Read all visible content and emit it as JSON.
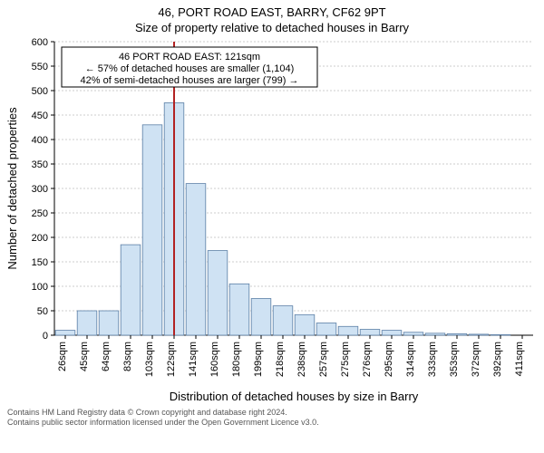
{
  "header": {
    "title": "46, PORT ROAD EAST, BARRY, CF62 9PT",
    "subtitle": "Size of property relative to detached houses in Barry"
  },
  "chart": {
    "type": "histogram",
    "xlabel": "Distribution of detached houses by size in Barry",
    "ylabel": "Number of detached properties",
    "background_color": "#ffffff",
    "grid_color": "#999999",
    "bar_fill": "#cfe2f3",
    "bar_stroke": "#5b7fa6",
    "ref_line_color": "#b22222",
    "ylim": [
      0,
      600
    ],
    "ytick_step": 50,
    "x_tick_labels": [
      "26sqm",
      "45sqm",
      "64sqm",
      "83sqm",
      "103sqm",
      "122sqm",
      "141sqm",
      "160sqm",
      "180sqm",
      "199sqm",
      "218sqm",
      "238sqm",
      "257sqm",
      "275sqm",
      "276sqm",
      "295sqm",
      "314sqm",
      "333sqm",
      "353sqm",
      "372sqm",
      "392sqm",
      "411sqm"
    ],
    "values": [
      10,
      50,
      50,
      185,
      430,
      475,
      310,
      173,
      105,
      75,
      60,
      42,
      25,
      18,
      12,
      10,
      6,
      4,
      3,
      2,
      1,
      0
    ],
    "ref_line_index": 5,
    "info_box": {
      "line1": "46 PORT ROAD EAST: 121sqm",
      "line2": "← 57% of detached houses are smaller (1,104)",
      "line3": "42% of semi-detached houses are larger (799) →"
    }
  },
  "footer": {
    "line1": "Contains HM Land Registry data © Crown copyright and database right 2024.",
    "line2": "Contains public sector information licensed under the Open Government Licence v3.0."
  }
}
